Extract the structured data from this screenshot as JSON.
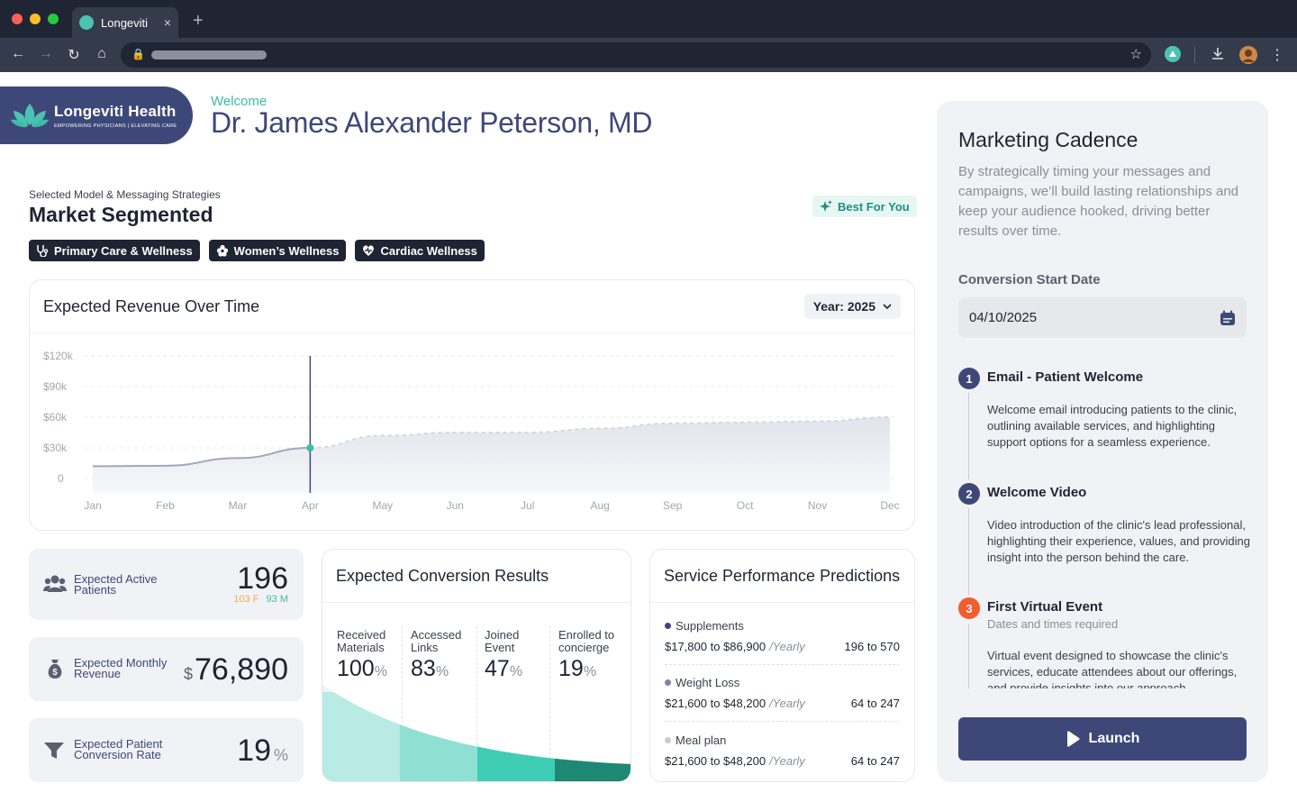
{
  "browser": {
    "tab_title": "Longeviti",
    "new_tab": "+",
    "close_tab": "×"
  },
  "header": {
    "logo_name": "Longeviti Health",
    "logo_tagline": "EMPOWERING PHYSICIANS | ELEVATING CARE",
    "welcome": "Welcome",
    "doctor_name": "Dr. James Alexander Peterson, MD"
  },
  "model": {
    "label": "Selected Model & Messaging Strategies",
    "title": "Market Segmented",
    "badge": "Best For You",
    "chips": [
      "Primary Care & Wellness",
      "Women’s Wellness",
      "Cardiac Wellness"
    ]
  },
  "revenue": {
    "title": "Expected Revenue Over Time",
    "year_select": "Year: 2025"
  },
  "chart_data": {
    "type": "area",
    "x": [
      "Jan",
      "Feb",
      "Mar",
      "Apr",
      "May",
      "Jun",
      "Jul",
      "Aug",
      "Sep",
      "Oct",
      "Nov",
      "Dec"
    ],
    "series": [
      {
        "values": [
          12000,
          12500,
          20000,
          30000,
          42000,
          45000,
          45000,
          49000,
          54000,
          55000,
          56000,
          60000
        ]
      }
    ],
    "yticks": [
      "$120k",
      "$90k",
      "$60k",
      "$30k",
      "0"
    ],
    "ylim": [
      0,
      120000
    ],
    "marker_month": "Apr",
    "grid": true
  },
  "stats": {
    "active_label": "Expected Active Patients",
    "active_value": "196",
    "active_f": "103 F",
    "active_m": "93 M",
    "monthly_label": "Expected Monthly Revenue",
    "monthly_currency": "$",
    "monthly_value": "76,890",
    "conv_label": "Expected Patient Conversion Rate",
    "conv_value": "19",
    "conv_unit": "%"
  },
  "conversion": {
    "title": "Expected Conversion Results",
    "pct": "%",
    "columns": [
      {
        "label": "Received Materials",
        "value": "100",
        "fraction": 1.0
      },
      {
        "label": "Accessed Links",
        "value": "83",
        "fraction": 0.83
      },
      {
        "label": "Joined Event",
        "value": "47",
        "fraction": 0.47
      },
      {
        "label": "Enrolled to concierge",
        "value": "19",
        "fraction": 0.19
      }
    ]
  },
  "services": {
    "title": "Service Performance Predictions",
    "per": "/Yearly",
    "items": [
      {
        "name": "Supplements",
        "range": "$17,800 to $86,900",
        "patients": "196 to 570",
        "color": "#3e4878"
      },
      {
        "name": "Weight Loss",
        "range": "$21,600 to $48,200",
        "patients": "64 to 247",
        "color": "#7c83a6"
      },
      {
        "name": "Meal plan",
        "range": "$21,600 to $48,200",
        "patients": "64 to 247",
        "color": "#c8cbd8"
      }
    ]
  },
  "marketing": {
    "title": "Marketing Cadence",
    "description": "By strategically timing your messages and campaigns, we’ll build lasting relationships and keep your audience hooked, driving better results over time.",
    "date_label": "Conversion Start Date",
    "date_value": "04/10/2025",
    "steps": [
      {
        "num": "1",
        "title": "Email - Patient Welcome",
        "desc": "Welcome email introducing patients to the clinic, outlining available services, and highlighting support options for a seamless experience.",
        "color": "#3e4878"
      },
      {
        "num": "2",
        "title": "Welcome Video",
        "desc": "Video introduction of the clinic's lead professional, highlighting their experience, values, and providing insight into the person behind the care.",
        "color": "#3e4878"
      },
      {
        "num": "3",
        "title": "First Virtual Event",
        "sub": "Dates and times required",
        "desc": "Virtual event designed to showcase the clinic's services, educate attendees about our offerings, and provide insights into our approach.",
        "color": "#f25c2e"
      }
    ],
    "launch": "Launch"
  },
  "colors": {
    "brand": "#3e4878",
    "accent": "#3fbba8",
    "alert": "#f25c2e"
  }
}
